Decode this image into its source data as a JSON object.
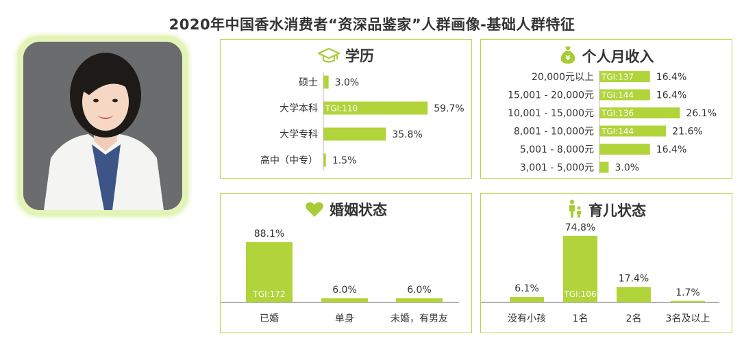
{
  "title": "2020年中国香水消费者“资深品鉴家”人群画像-基础人群特征",
  "colors": {
    "bar": "#b1d43b",
    "border": "#b4d845",
    "text": "#333333"
  },
  "chart_data": [
    {
      "type": "bar",
      "orientation": "horizontal",
      "title": "学历",
      "icon": "graduation-cap-icon",
      "categories": [
        "硕士",
        "大学本科",
        "大学专科",
        "高中（中专）"
      ],
      "values": [
        3.0,
        59.7,
        35.8,
        1.5
      ],
      "value_labels": [
        "3.0%",
        "59.7%",
        "35.8%",
        "1.5%"
      ],
      "tgi": [
        "",
        "TGI:110",
        "",
        ""
      ]
    },
    {
      "type": "bar",
      "orientation": "horizontal",
      "title": "个人月收入",
      "icon": "money-bag-icon",
      "categories": [
        "20,000元以上",
        "15,001 - 20,000元",
        "10,001 - 15,000元",
        "8,001 - 10,000元",
        "5,001 - 8,000元",
        "3,001 - 5,000元"
      ],
      "values": [
        16.4,
        16.4,
        26.1,
        21.6,
        16.4,
        3.0
      ],
      "value_labels": [
        "16.4%",
        "16.4%",
        "26.1%",
        "21.6%",
        "16.4%",
        "3.0%"
      ],
      "tgi": [
        "TGI:137",
        "TGI:144",
        "TGI:136",
        "TGI:144",
        "",
        ""
      ]
    },
    {
      "type": "bar",
      "orientation": "vertical",
      "title": "婚姻状态",
      "icon": "heart-icon",
      "categories": [
        "已婚",
        "单身",
        "未婚，有男友"
      ],
      "values": [
        88.1,
        6.0,
        6.0
      ],
      "value_labels": [
        "88.1%",
        "6.0%",
        "6.0%"
      ],
      "tgi": [
        "TGI:172",
        "",
        ""
      ]
    },
    {
      "type": "bar",
      "orientation": "vertical",
      "title": "育儿状态",
      "icon": "parent-child-icon",
      "categories": [
        "没有小孩",
        "1名",
        "2名",
        "3名及以上"
      ],
      "values": [
        6.1,
        74.8,
        17.4,
        1.7
      ],
      "value_labels": [
        "6.1%",
        "74.8%",
        "17.4%",
        "1.7%"
      ],
      "tgi": [
        "",
        "TGI:106",
        "",
        ""
      ]
    }
  ]
}
